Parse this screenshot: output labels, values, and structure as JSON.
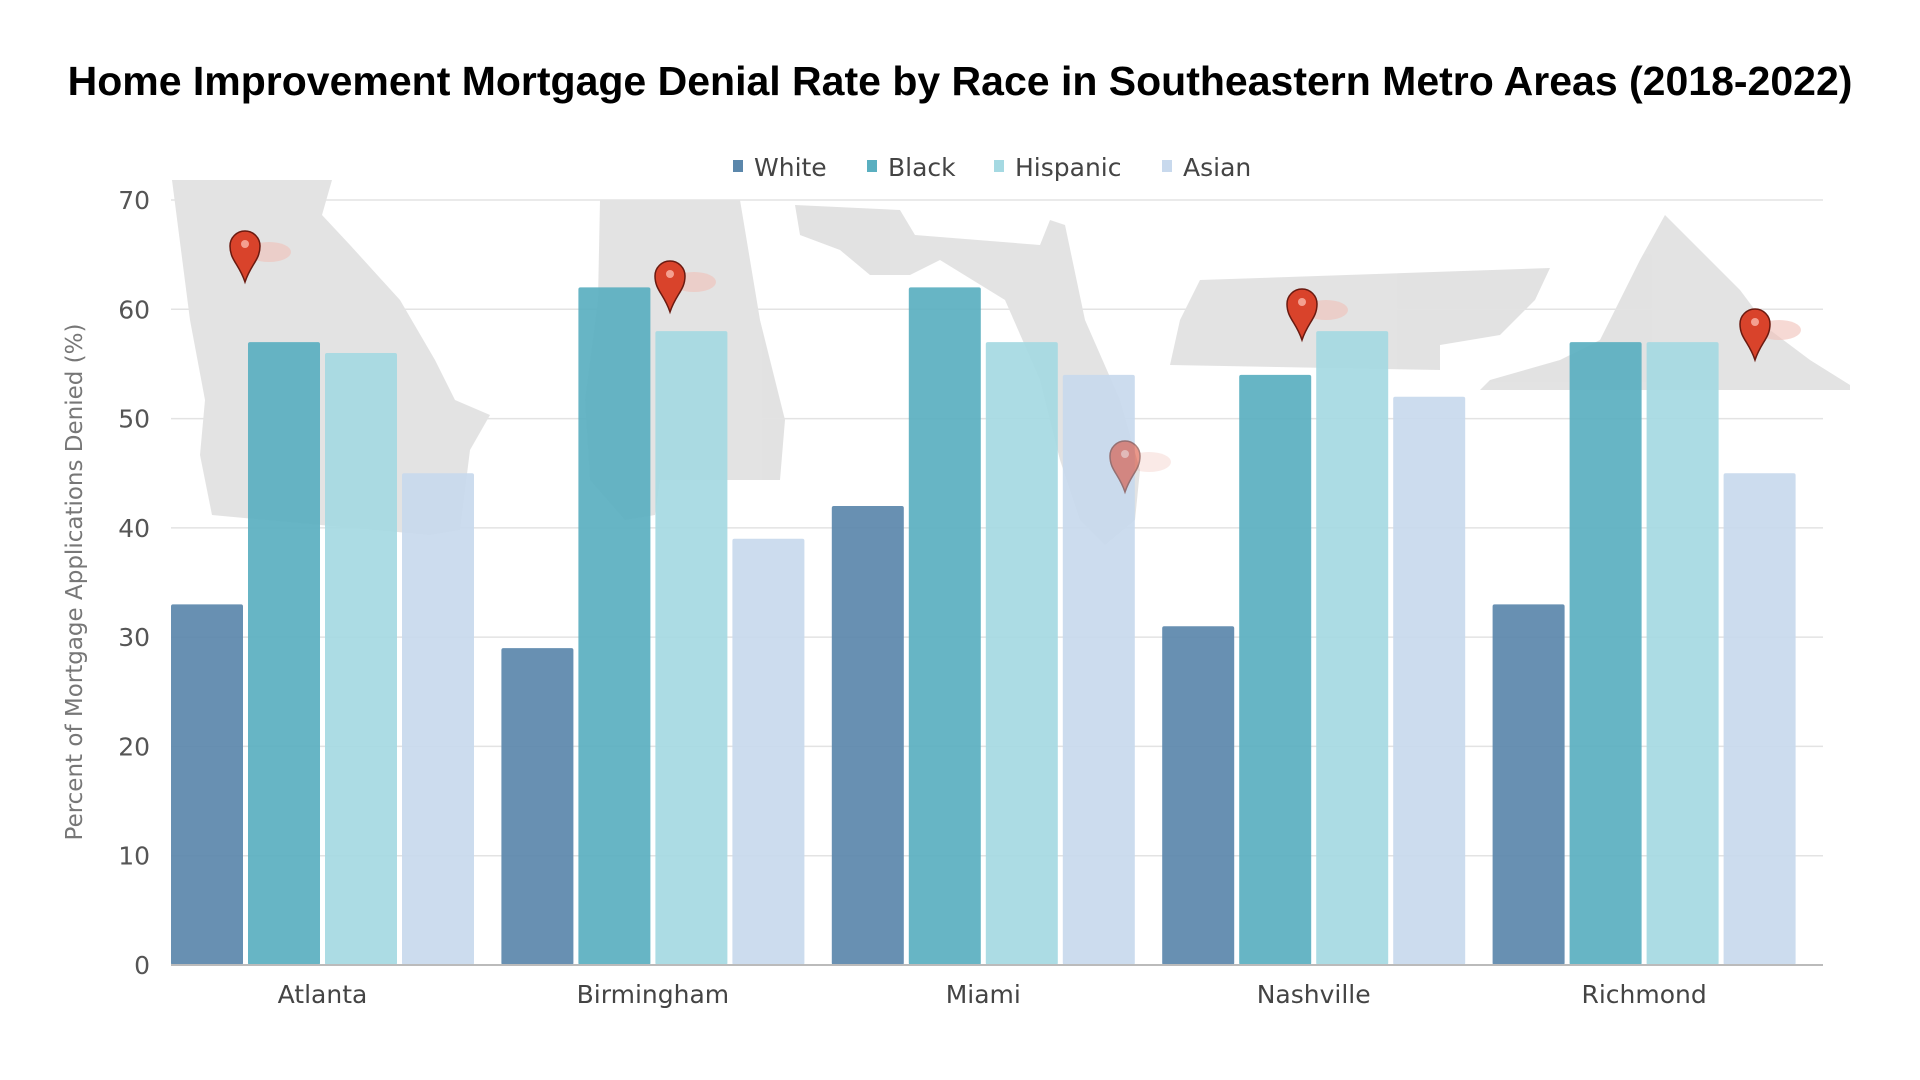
{
  "chart_data": {
    "type": "bar",
    "title": "Home Improvement Mortgage Denial Rate by Race in Southeastern Metro Areas (2018-2022)",
    "xlabel": "",
    "ylabel": "Percent of Mortgage Applications Denied (%)",
    "ylim": [
      0,
      70
    ],
    "yticks": [
      "0",
      "10",
      "20",
      "30",
      "40",
      "50",
      "60",
      "70"
    ],
    "grid": true,
    "legend_position": "top",
    "categories": [
      "Atlanta",
      "Birmingham",
      "Miami",
      "Nashville",
      "Richmond"
    ],
    "series": [
      {
        "name": "White",
        "color": "#5b87ab",
        "values": [
          33,
          29,
          42,
          31,
          33
        ]
      },
      {
        "name": "Black",
        "color": "#5aafc0",
        "values": [
          57,
          62,
          62,
          54,
          57
        ]
      },
      {
        "name": "Hispanic",
        "color": "#a5d9e2",
        "values": [
          56,
          58,
          57,
          58,
          57
        ]
      },
      {
        "name": "Asian",
        "color": "#c8d9ed",
        "values": [
          45,
          39,
          54,
          52,
          45
        ]
      }
    ],
    "background_images": [
      "georgia-map",
      "alabama-map",
      "florida-map",
      "tennessee-map",
      "virginia-map"
    ],
    "marker_icon": "map-pin-icon",
    "marker_color": "#d9432b"
  }
}
